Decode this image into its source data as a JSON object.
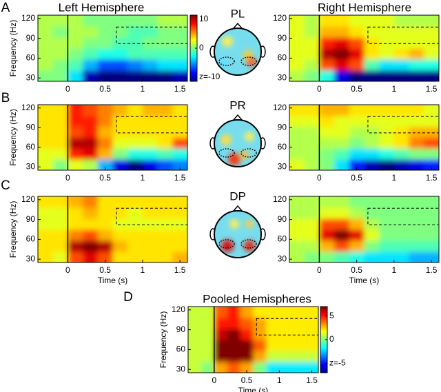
{
  "panel_labels": [
    "A",
    "B",
    "C",
    "D"
  ],
  "topoplots": [
    "PL",
    "PR",
    "DP"
  ],
  "chart_data": [
    {
      "type": "heatmap",
      "title": "Left Hemisphere",
      "ylabel": "Frequency (Hz)",
      "xlim": [
        -0.4,
        1.6
      ],
      "xticks": [
        0,
        0.5,
        1,
        1.5
      ],
      "ylim": [
        25,
        125
      ],
      "yticks": [
        30,
        60,
        90,
        120
      ],
      "clim": [
        -10,
        10
      ],
      "colorbar_ticks": [
        10,
        0,
        {
          "value": -10,
          "label": "z=-10"
        }
      ],
      "roi": {
        "x": [
          0.65,
          1.6
        ],
        "y": [
          82,
          107
        ]
      },
      "z": [
        [
          0,
          0,
          -3,
          -9,
          -10,
          -10,
          -10,
          -10,
          -10,
          -9
        ],
        [
          1,
          0,
          -1,
          -4,
          -6,
          -6,
          -5,
          -4,
          -3,
          -3
        ],
        [
          1,
          1,
          0,
          -1,
          -2,
          -2,
          -1,
          -1,
          -1,
          -1
        ],
        [
          1,
          1,
          1,
          0,
          0,
          -1,
          -1,
          0,
          0,
          0
        ],
        [
          1,
          0,
          1,
          1,
          0,
          0,
          -1,
          -1,
          0,
          0
        ],
        [
          1,
          1,
          1,
          0,
          0,
          0,
          0,
          0,
          1,
          1
        ]
      ]
    },
    {
      "type": "heatmap",
      "title": "Right Hemisphere",
      "xlim": [
        -0.4,
        1.6
      ],
      "xticks": [
        0,
        0.5,
        1,
        1.5
      ],
      "ylim": [
        25,
        125
      ],
      "yticks": [
        30,
        60,
        90,
        120
      ],
      "clim": [
        -10,
        10
      ],
      "roi": {
        "x": [
          0.65,
          1.6
        ],
        "y": [
          82,
          107
        ]
      },
      "z": [
        [
          1,
          0,
          -2,
          -8,
          -10,
          -10,
          -10,
          -10,
          -10,
          -10
        ],
        [
          2,
          1,
          6,
          8,
          6,
          -1,
          -3,
          -3,
          -2,
          -2
        ],
        [
          2,
          2,
          9,
          10,
          8,
          3,
          2,
          3,
          4,
          2
        ],
        [
          2,
          2,
          7,
          8,
          6,
          3,
          2,
          2,
          2,
          2
        ],
        [
          2,
          1,
          4,
          4,
          3,
          2,
          2,
          2,
          2,
          2
        ],
        [
          2,
          1,
          3,
          3,
          2,
          2,
          2,
          1,
          1,
          1
        ]
      ]
    },
    {
      "type": "heatmap",
      "ylabel": "Frequency (Hz)",
      "xlim": [
        -0.4,
        1.6
      ],
      "xticks": [
        0,
        0.5,
        1,
        1.5
      ],
      "ylim": [
        25,
        125
      ],
      "yticks": [
        30,
        60,
        90,
        120
      ],
      "clim": [
        -10,
        10
      ],
      "roi": {
        "x": [
          0.65,
          1.6
        ],
        "y": [
          82,
          107
        ]
      },
      "z": [
        [
          2,
          0,
          2,
          1,
          -4,
          -8,
          -10,
          -8,
          -6,
          -5
        ],
        [
          2,
          2,
          7,
          8,
          4,
          0,
          -2,
          -2,
          -1,
          -2
        ],
        [
          3,
          3,
          9,
          9,
          5,
          2,
          2,
          2,
          3,
          6
        ],
        [
          3,
          3,
          6,
          7,
          4,
          3,
          3,
          3,
          3,
          3
        ],
        [
          3,
          3,
          7,
          7,
          5,
          3,
          3,
          3,
          3,
          3
        ],
        [
          3,
          3,
          7,
          6,
          5,
          4,
          3,
          4,
          4,
          3
        ]
      ]
    },
    {
      "type": "heatmap",
      "xlim": [
        -0.4,
        1.6
      ],
      "xticks": [
        0,
        0.5,
        1,
        1.5
      ],
      "ylim": [
        25,
        125
      ],
      "yticks": [
        30,
        60,
        90,
        120
      ],
      "clim": [
        -10,
        10
      ],
      "roi": {
        "x": [
          0.65,
          1.6
        ],
        "y": [
          82,
          107
        ]
      },
      "z": [
        [
          2,
          1,
          0,
          -3,
          -7,
          -9,
          -10,
          -9,
          -8,
          -7
        ],
        [
          1,
          1,
          0,
          -1,
          -3,
          -3,
          -2,
          -1,
          0,
          0
        ],
        [
          1,
          1,
          1,
          1,
          0,
          1,
          2,
          3,
          5,
          6
        ],
        [
          1,
          1,
          2,
          2,
          1,
          1,
          2,
          3,
          4,
          4
        ],
        [
          2,
          2,
          3,
          2,
          2,
          2,
          2,
          2,
          2,
          2
        ],
        [
          3,
          3,
          4,
          4,
          3,
          3,
          3,
          3,
          3,
          2
        ]
      ]
    },
    {
      "type": "heatmap",
      "ylabel": "Frequency (Hz)",
      "xlabel": "Time (s)",
      "xlim": [
        -0.4,
        1.6
      ],
      "xticks": [
        0,
        0.5,
        1,
        1.5
      ],
      "ylim": [
        25,
        125
      ],
      "yticks": [
        30,
        60,
        90,
        120
      ],
      "clim": [
        -10,
        10
      ],
      "roi": {
        "x": [
          0.65,
          1.6
        ],
        "y": [
          82,
          107
        ]
      },
      "z": [
        [
          3,
          2,
          6,
          8,
          6,
          3,
          3,
          3,
          3,
          4
        ],
        [
          3,
          3,
          9,
          10,
          9,
          4,
          3,
          3,
          3,
          3
        ],
        [
          3,
          3,
          5,
          6,
          4,
          3,
          3,
          3,
          3,
          3
        ],
        [
          2,
          2,
          3,
          3,
          3,
          2,
          2,
          2,
          2,
          2
        ],
        [
          2,
          2,
          3,
          4,
          3,
          3,
          2,
          3,
          3,
          3
        ],
        [
          3,
          3,
          4,
          5,
          3,
          3,
          3,
          3,
          3,
          3
        ]
      ]
    },
    {
      "type": "heatmap",
      "xlabel": "Time (s)",
      "xlim": [
        -0.4,
        1.6
      ],
      "xticks": [
        0,
        0.5,
        1,
        1.5
      ],
      "ylim": [
        25,
        125
      ],
      "yticks": [
        30,
        60,
        90,
        120
      ],
      "clim": [
        -10,
        10
      ],
      "roi": {
        "x": [
          0.65,
          1.6
        ],
        "y": [
          82,
          107
        ]
      },
      "z": [
        [
          1,
          0,
          0,
          -1,
          -2,
          -3,
          -3,
          -3,
          -4,
          -4
        ],
        [
          1,
          1,
          4,
          6,
          4,
          0,
          -1,
          -1,
          -1,
          -1
        ],
        [
          2,
          2,
          8,
          10,
          8,
          2,
          0,
          0,
          0,
          0
        ],
        [
          2,
          2,
          6,
          6,
          4,
          1,
          0,
          0,
          0,
          0
        ],
        [
          1,
          1,
          2,
          2,
          1,
          0,
          0,
          0,
          0,
          0
        ],
        [
          1,
          1,
          1,
          1,
          0,
          0,
          0,
          0,
          0,
          0
        ]
      ]
    },
    {
      "type": "heatmap",
      "title": "Pooled Hemispheres",
      "ylabel": "Frequency (Hz)",
      "xlabel": "Time (s)",
      "xlim": [
        -0.4,
        1.6
      ],
      "xticks": [
        0,
        0.5,
        1,
        1.5
      ],
      "ylim": [
        25,
        125
      ],
      "yticks": [
        30,
        60,
        90,
        120
      ],
      "clim": [
        -7,
        7
      ],
      "colorbar_ticks": [
        5,
        0,
        {
          "value": -5,
          "label": "z=-5"
        }
      ],
      "roi": {
        "x": [
          0.65,
          1.6
        ],
        "y": [
          82,
          107
        ]
      },
      "z": [
        [
          1,
          0,
          3,
          4,
          3,
          0,
          -2,
          -2,
          -2,
          -2
        ],
        [
          1,
          1,
          7,
          7,
          7,
          3,
          1,
          1,
          1,
          1
        ],
        [
          1,
          1,
          7,
          7,
          7,
          4,
          2,
          2,
          2,
          2
        ],
        [
          1,
          1,
          6,
          7,
          5,
          3,
          2,
          2,
          2,
          2
        ],
        [
          1,
          1,
          5,
          5,
          4,
          3,
          2,
          2,
          2,
          2
        ],
        [
          1,
          1,
          4,
          5,
          3,
          2,
          2,
          2,
          2,
          2
        ]
      ]
    }
  ]
}
